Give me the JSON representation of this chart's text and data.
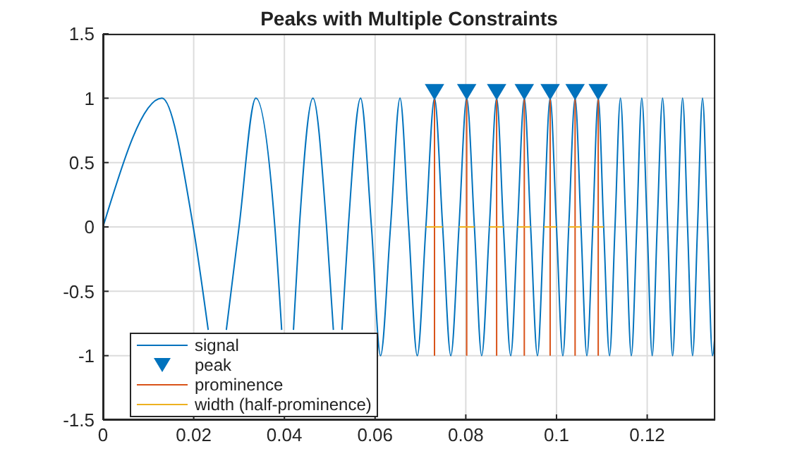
{
  "chart_data": {
    "type": "line",
    "title": "Peaks with Multiple Constraints",
    "xlim": [
      0,
      0.135
    ],
    "xticks": [
      0,
      0.02,
      0.04,
      0.06,
      0.08,
      0.1,
      0.12
    ],
    "ylim": [
      -1.5,
      1.5
    ],
    "yticks": [
      -1.5,
      -1,
      -0.5,
      0,
      0.5,
      1,
      1.5
    ],
    "grid": true,
    "legend": "bottom left",
    "series": [
      {
        "name": "signal",
        "color": "#0072bd",
        "marker": "none",
        "x": [
          0,
          0.013,
          0.0199,
          0.0232,
          null,
          0.0272,
          0.03,
          0.0337,
          0.0379,
          0.0394,
          null,
          0.042,
          0.0433,
          0.0463,
          0.0493,
          0.0508,
          null,
          0.0527,
          0.0541,
          0.0568,
          0.0592,
          0.0612,
          0.0634,
          0.0655,
          0.0674,
          0.0693,
          0.0712,
          0.0731,
          0.0749,
          0.0767,
          0.0785,
          0.0802,
          0.0819,
          0.0835,
          0.0852,
          0.0868,
          0.0883,
          0.0899,
          0.0914,
          0.0929,
          0.0943,
          0.0958,
          0.0972,
          0.0986,
          0.1,
          0.1014,
          0.1027,
          0.1041,
          0.1054,
          0.1067,
          0.108,
          0.1092,
          0.1104,
          0.1117,
          0.1129,
          0.1141,
          0.1153,
          0.1165,
          0.1177,
          0.1188,
          0.12,
          0.1211,
          0.1222,
          0.1234,
          0.1245,
          0.1256,
          0.1267,
          0.1278,
          0.1289,
          0.13,
          0.1311,
          0.1322,
          0.1333,
          0.1344,
          0.135
        ],
        "values": [
          0,
          1,
          0,
          -0.8,
          null,
          -0.8,
          0,
          1,
          0,
          -0.8,
          null,
          -0.8,
          0,
          1,
          0,
          -0.8,
          null,
          -0.8,
          0,
          1,
          0,
          -1,
          0,
          1,
          0,
          -1,
          0,
          1,
          0,
          -1,
          0,
          1,
          0,
          -1,
          0,
          1,
          0,
          -1,
          0,
          1,
          0,
          -1,
          0,
          1,
          0,
          -1,
          0,
          1,
          0,
          -1,
          0,
          1,
          0,
          -1,
          0,
          1,
          0,
          -1,
          0,
          1,
          0,
          -1,
          0,
          1,
          0,
          -1,
          0,
          1,
          0,
          -1,
          0,
          1,
          0,
          -1,
          -0.8
        ]
      },
      {
        "name": "peak",
        "type": "scatter",
        "color": "#0072bd",
        "marker": "triangle",
        "x": [
          0.0731,
          0.0802,
          0.0868,
          0.0929,
          0.0986,
          0.1041,
          0.1092
        ],
        "values": [
          1.05,
          1.05,
          1.05,
          1.05,
          1.05,
          1.05,
          1.05
        ]
      },
      {
        "name": "prominence",
        "color": "#d95319",
        "marker": "none",
        "x": [
          0.0731,
          0.0731,
          null,
          0.0802,
          0.0802,
          null,
          0.0868,
          0.0868,
          null,
          0.0929,
          0.0929,
          null,
          0.0986,
          0.0986,
          null,
          0.1041,
          0.1041,
          null,
          0.1092,
          0.1092
        ],
        "values": [
          1,
          -1,
          null,
          1,
          -1,
          null,
          1,
          -1,
          null,
          1,
          -1,
          null,
          1,
          -1,
          null,
          1,
          -1,
          null,
          1,
          -1
        ]
      },
      {
        "name": "width (half-prominence)",
        "color": "#edb120",
        "marker": "none",
        "x": [
          0.0712,
          0.0749,
          null,
          0.0785,
          0.0819,
          null,
          0.0852,
          0.0883,
          null,
          0.0914,
          0.0943,
          null,
          0.0972,
          0.1,
          null,
          0.1027,
          0.1054,
          null,
          0.108,
          0.1104
        ],
        "values": [
          0,
          0,
          null,
          0,
          0,
          null,
          0,
          0,
          null,
          0,
          0,
          null,
          0,
          0,
          null,
          0,
          0,
          null,
          0,
          0
        ]
      }
    ]
  }
}
